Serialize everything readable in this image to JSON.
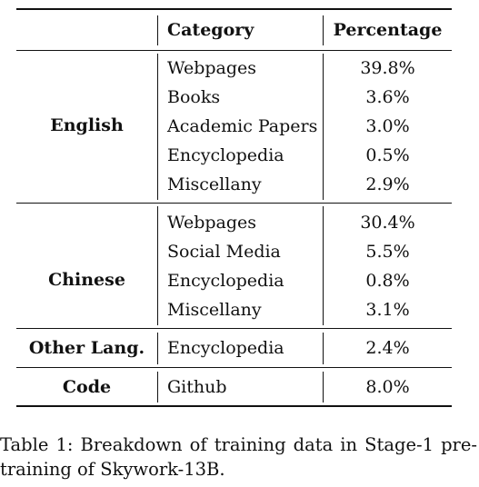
{
  "table": {
    "headers": [
      "",
      "Category",
      "Percentage"
    ],
    "groups": [
      {
        "name": "English",
        "rows": [
          {
            "category": "Webpages",
            "percentage": "39.8%"
          },
          {
            "category": "Books",
            "percentage": "3.6%"
          },
          {
            "category": "Academic Papers",
            "percentage": "3.0%"
          },
          {
            "category": "Encyclopedia",
            "percentage": "0.5%"
          },
          {
            "category": "Miscellany",
            "percentage": "2.9%"
          }
        ]
      },
      {
        "name": "Chinese",
        "rows": [
          {
            "category": "Webpages",
            "percentage": "30.4%"
          },
          {
            "category": "Social Media",
            "percentage": "5.5%"
          },
          {
            "category": "Encyclopedia",
            "percentage": "0.8%"
          },
          {
            "category": "Miscellany",
            "percentage": "3.1%"
          }
        ]
      },
      {
        "name": "Other Lang.",
        "rows": [
          {
            "category": "Encyclopedia",
            "percentage": "2.4%"
          }
        ]
      },
      {
        "name": "Code",
        "rows": [
          {
            "category": "Github",
            "percentage": "8.0%"
          }
        ]
      }
    ]
  },
  "caption": "Table 1: Breakdown of training data in Stage-1 pre-training of Skywork-13B."
}
